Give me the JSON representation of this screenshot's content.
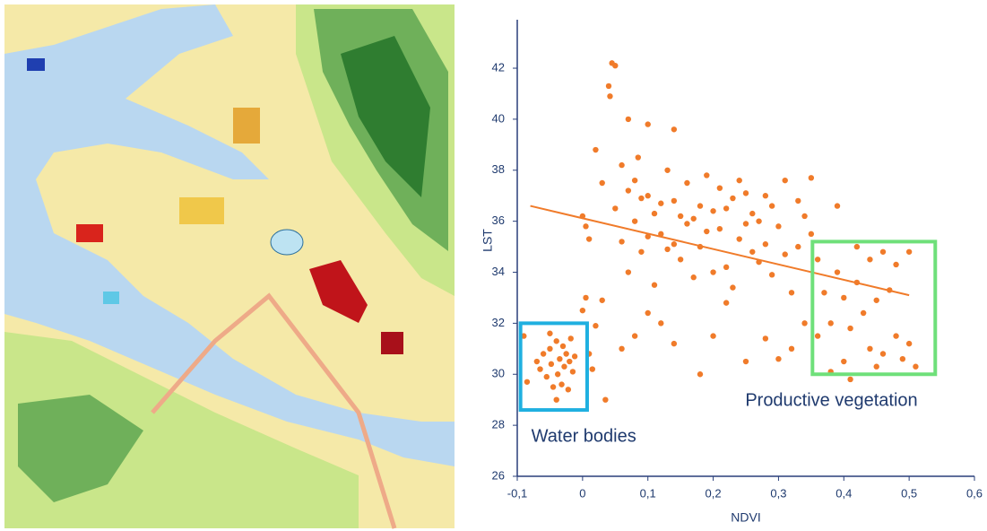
{
  "chart_data": {
    "type": "scatter",
    "x_label": "NDVI",
    "y_label": "LST",
    "color": "#f07b2a",
    "xlim": [
      -0.1,
      0.6
    ],
    "ylim": [
      26,
      43.9
    ],
    "xticks": [
      {
        "value": -0.1,
        "label": "-0,1"
      },
      0,
      {
        "value": 0.1,
        "label": "0,1"
      },
      {
        "value": 0.2,
        "label": "0,2"
      },
      {
        "value": 0.3,
        "label": "0,3"
      },
      {
        "value": 0.4,
        "label": "0,4"
      },
      {
        "value": 0.5,
        "label": "0,5"
      },
      {
        "value": 0.6,
        "label": "0,6"
      }
    ],
    "yticks": [
      26,
      28,
      30,
      32,
      34,
      36,
      38,
      40,
      42
    ],
    "trendline": {
      "x": [
        -0.08,
        0.5
      ],
      "values": [
        36.6,
        33.1
      ],
      "color": "#f07b2a"
    },
    "regions": [
      {
        "label": "Water bodies",
        "color": "#1fb0e0",
        "x": [
          -0.095,
          0.007
        ],
        "values": [
          28.6,
          32
        ]
      },
      {
        "label": "Productive vegetation",
        "color": "#6fe07a",
        "x": [
          0.352,
          0.54
        ],
        "values": [
          30,
          35.2
        ]
      }
    ],
    "x": [
      -0.09,
      -0.085,
      -0.07,
      -0.065,
      -0.06,
      -0.055,
      -0.05,
      -0.048,
      -0.045,
      -0.04,
      -0.038,
      -0.035,
      -0.032,
      -0.03,
      -0.028,
      -0.025,
      -0.022,
      -0.02,
      -0.018,
      -0.015,
      -0.012,
      -0.04,
      -0.05,
      0.0,
      0.005,
      0.01,
      0.015,
      0.02,
      0.03,
      0.035,
      0.01,
      0.0,
      0.005,
      0.045,
      0.05,
      0.04,
      0.042,
      0.07,
      0.085,
      0.1,
      0.14,
      0.06,
      0.02,
      0.03,
      0.05,
      0.06,
      0.07,
      0.08,
      0.09,
      0.1,
      0.11,
      0.12,
      0.13,
      0.14,
      0.15,
      0.16,
      0.17,
      0.18,
      0.19,
      0.2,
      0.21,
      0.22,
      0.23,
      0.24,
      0.25,
      0.26,
      0.27,
      0.28,
      0.29,
      0.3,
      0.07,
      0.09,
      0.11,
      0.13,
      0.15,
      0.17,
      0.19,
      0.21,
      0.23,
      0.25,
      0.27,
      0.29,
      0.31,
      0.32,
      0.33,
      0.34,
      0.08,
      0.1,
      0.12,
      0.14,
      0.16,
      0.18,
      0.2,
      0.22,
      0.24,
      0.26,
      0.28,
      0.1,
      0.12,
      0.14,
      0.08,
      0.06,
      0.2,
      0.25,
      0.18,
      0.28,
      0.3,
      0.22,
      0.36,
      0.37,
      0.38,
      0.39,
      0.4,
      0.41,
      0.42,
      0.43,
      0.44,
      0.45,
      0.46,
      0.47,
      0.48,
      0.49,
      0.5,
      0.51,
      0.38,
      0.4,
      0.42,
      0.44,
      0.46,
      0.48,
      0.36,
      0.39,
      0.35,
      0.41,
      0.45,
      0.5,
      0.33,
      0.31,
      0.35,
      0.34,
      0.32
    ],
    "values": [
      31.5,
      29.7,
      30.5,
      30.2,
      30.8,
      29.9,
      31.0,
      30.4,
      29.5,
      31.3,
      30.0,
      30.6,
      29.6,
      31.1,
      30.3,
      30.8,
      29.4,
      30.5,
      31.4,
      30.1,
      30.7,
      29.0,
      31.6,
      32.5,
      33.0,
      30.8,
      30.2,
      31.9,
      32.9,
      29.0,
      35.3,
      36.2,
      35.8,
      42.2,
      42.1,
      41.3,
      40.9,
      40.0,
      38.5,
      39.8,
      39.6,
      38.2,
      38.8,
      37.5,
      36.5,
      35.2,
      37.2,
      36.0,
      34.8,
      37.0,
      36.3,
      35.5,
      38.0,
      36.8,
      34.5,
      37.5,
      36.1,
      35.0,
      37.8,
      36.4,
      35.7,
      34.2,
      36.9,
      35.3,
      37.1,
      34.8,
      36.0,
      35.1,
      33.9,
      35.8,
      34.0,
      36.9,
      33.5,
      34.9,
      36.2,
      33.8,
      35.6,
      37.3,
      33.4,
      35.9,
      34.4,
      36.6,
      34.7,
      33.2,
      35.0,
      36.2,
      37.6,
      35.4,
      36.7,
      35.1,
      35.9,
      36.6,
      34.0,
      36.5,
      37.6,
      36.3,
      37.0,
      32.4,
      32.0,
      31.2,
      31.5,
      31.0,
      31.5,
      30.5,
      30.0,
      31.4,
      30.6,
      32.8,
      34.5,
      33.2,
      32.0,
      34.0,
      33.0,
      31.8,
      33.6,
      32.4,
      31.0,
      32.9,
      30.8,
      33.3,
      31.5,
      30.6,
      31.2,
      30.3,
      30.1,
      30.5,
      35.0,
      34.5,
      34.8,
      34.3,
      31.5,
      36.6,
      37.7,
      29.8,
      30.3,
      34.8,
      36.8,
      37.6,
      35.5,
      32.0,
      31.0
    ]
  }
}
